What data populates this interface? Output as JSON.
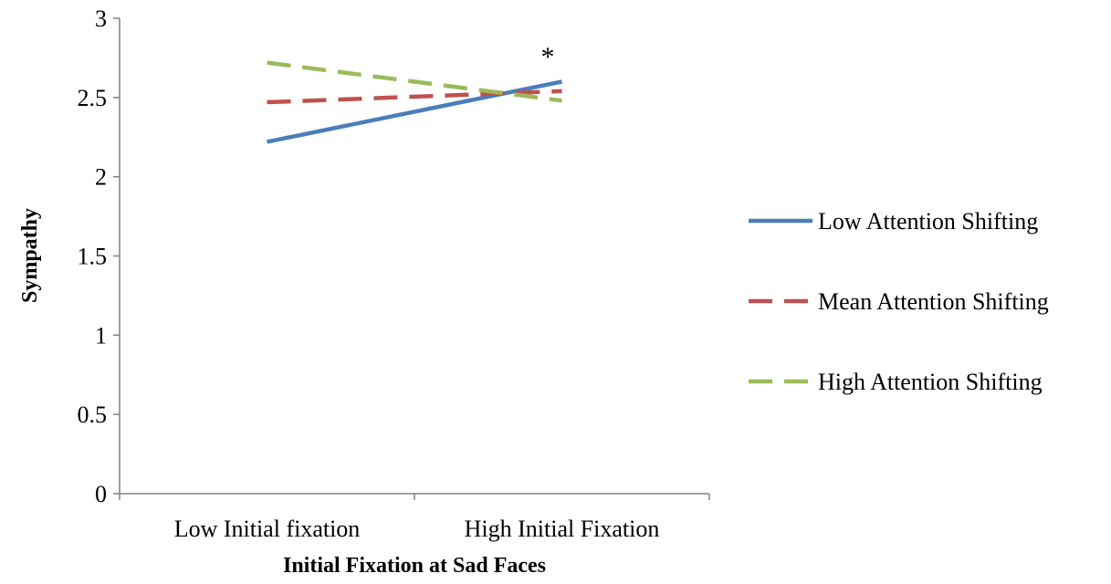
{
  "chart_data": {
    "type": "line",
    "title": "",
    "xlabel": "Initial Fixation at Sad Faces",
    "ylabel": "Sympathy",
    "categories": [
      "Low Initial fixation",
      "High Initial Fixation"
    ],
    "ylim": [
      0,
      3
    ],
    "yticks": [
      "0",
      "0.5",
      "1",
      "1.5",
      "2",
      "2.5",
      "3"
    ],
    "grid": false,
    "legend_position": "right",
    "annotation": "*",
    "series": [
      {
        "name": "Low Attention Shifting",
        "values": [
          2.22,
          2.6
        ],
        "color": "#4a7ebb",
        "dash": "solid"
      },
      {
        "name": "Mean Attention Shifting",
        "values": [
          2.47,
          2.54
        ],
        "color": "#c0504d",
        "dash": "dashed"
      },
      {
        "name": "High Attention Shifting",
        "values": [
          2.72,
          2.48
        ],
        "color": "#9bbb59",
        "dash": "dashed"
      }
    ]
  }
}
